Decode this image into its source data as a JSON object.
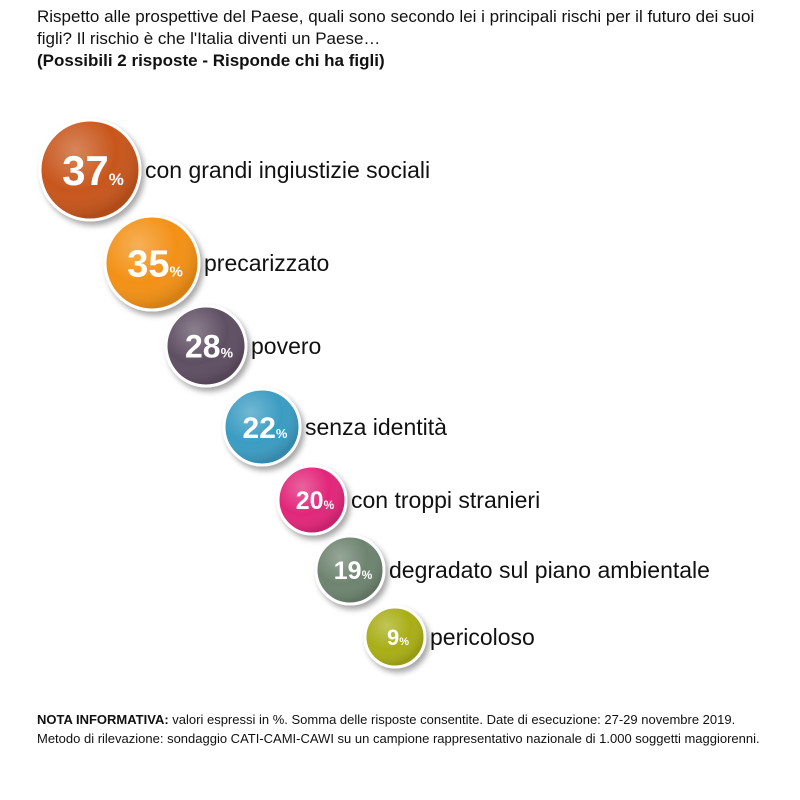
{
  "header": {
    "question": "Rispetto alle prospettive del Paese, quali sono secondo lei i principali rischi per il futuro dei suoi figli? Il rischio è che l'Italia diventi un Paese…",
    "instruction": "(Possibili 2 risposte - Risponde chi ha figli)"
  },
  "chart_data": {
    "type": "bubble-list",
    "unit": "%",
    "items": [
      {
        "label": "con grandi ingiustizie sociali",
        "value": 37,
        "color": "#C8561B"
      },
      {
        "label": "precarizzato",
        "value": 35,
        "color": "#F39117"
      },
      {
        "label": "povero",
        "value": 28,
        "color": "#5E4F64"
      },
      {
        "label": "senza identità",
        "value": 22,
        "color": "#3A9CC2"
      },
      {
        "label": "con troppi stranieri",
        "value": 20,
        "color": "#E2257A"
      },
      {
        "label": "degradato sul piano ambientale",
        "value": 19,
        "color": "#6E8470"
      },
      {
        "label": "pericoloso",
        "value": 9,
        "color": "#A9AE15"
      }
    ]
  },
  "note": {
    "label": "NOTA INFORMATIVA:",
    "text": "valori espressi in %. Somma delle risposte consentite. Date di esecuzione: 27-29 novembre 2019. Metodo di rilevazione: sondaggio CATI-CAMI-CAWI su un campione rappresentativo nazionale di 1.000 soggetti maggiorenni."
  }
}
